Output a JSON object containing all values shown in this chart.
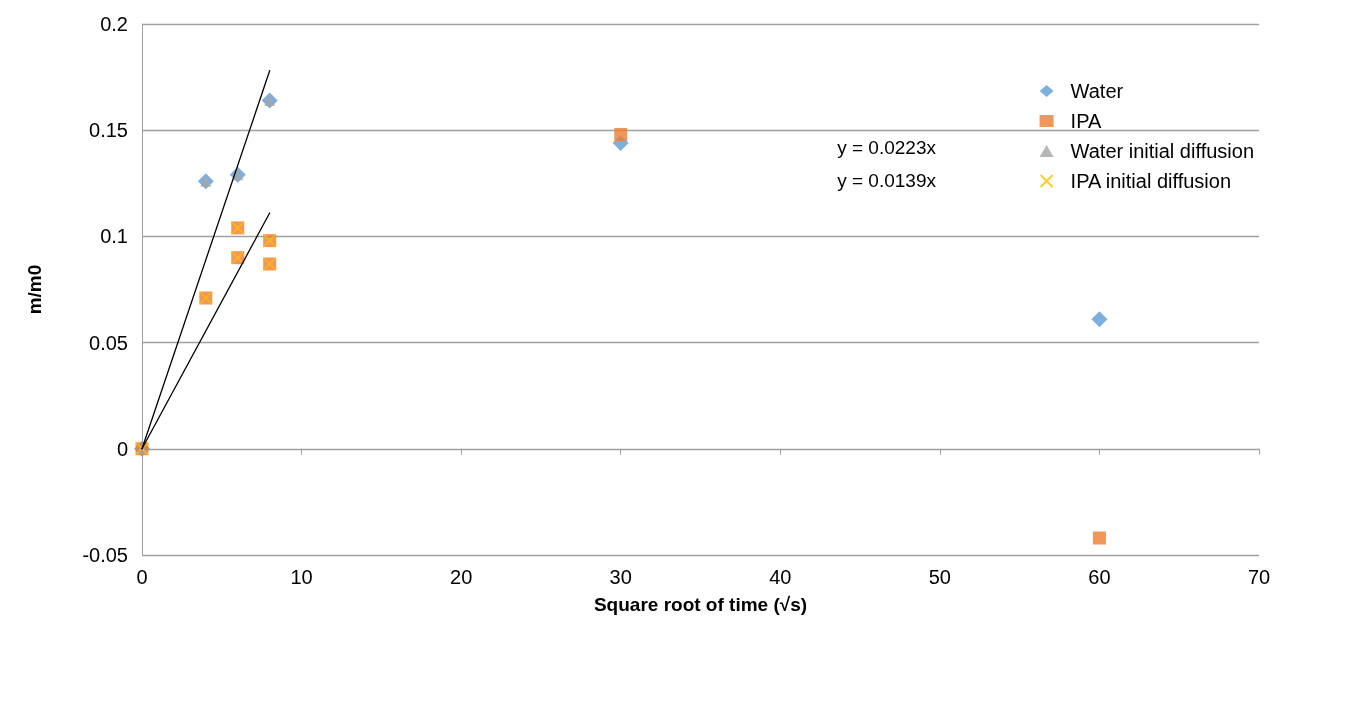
{
  "chart_data": {
    "type": "scatter",
    "xlabel": "Square root of time (√s)",
    "ylabel": "m/m0",
    "xlim": [
      0,
      70
    ],
    "xticks": [
      0,
      10,
      20,
      30,
      40,
      50,
      60,
      70
    ],
    "ylim": [
      -0.05,
      0.2
    ],
    "yticks": [
      -0.05,
      0,
      0.05,
      0.1,
      0.15,
      0.2
    ],
    "grid": "y",
    "legend": "top right",
    "annotations": [
      "y = 0.0223x",
      "y = 0.0139x"
    ],
    "series": [
      {
        "name": "Water",
        "color": "#5b9bd5",
        "marker": "diamond",
        "x": [
          0,
          4,
          6,
          8,
          30,
          60
        ],
        "values": [
          0,
          0.126,
          0.129,
          0.164,
          0.144,
          0.061
        ]
      },
      {
        "name": "IPA",
        "color": "#ed7d31",
        "marker": "square",
        "x": [
          0,
          4,
          6,
          6,
          8,
          8,
          30,
          60
        ],
        "values": [
          0,
          0.071,
          0.104,
          0.09,
          0.098,
          0.087,
          0.148,
          -0.042
        ]
      },
      {
        "name": "Water initial diffusion",
        "color": "#a5a5a5",
        "marker": "triangle",
        "x": [
          0,
          4,
          6,
          8
        ],
        "values": [
          0,
          0.126,
          0.129,
          0.164
        ]
      },
      {
        "name": "IPA initial diffusion",
        "color": "#ffc000",
        "marker": "cross",
        "x": [
          0,
          4,
          6,
          6,
          8,
          8
        ],
        "values": [
          0,
          0.071,
          0.104,
          0.09,
          0.098,
          0.087
        ]
      },
      {
        "type": "line",
        "color": "#000000",
        "marker": "none",
        "x": [
          0,
          8
        ],
        "values": [
          0,
          0.178
        ]
      },
      {
        "type": "line",
        "color": "#000000",
        "marker": "none",
        "x": [
          0,
          8
        ],
        "values": [
          0,
          0.111
        ]
      }
    ]
  }
}
